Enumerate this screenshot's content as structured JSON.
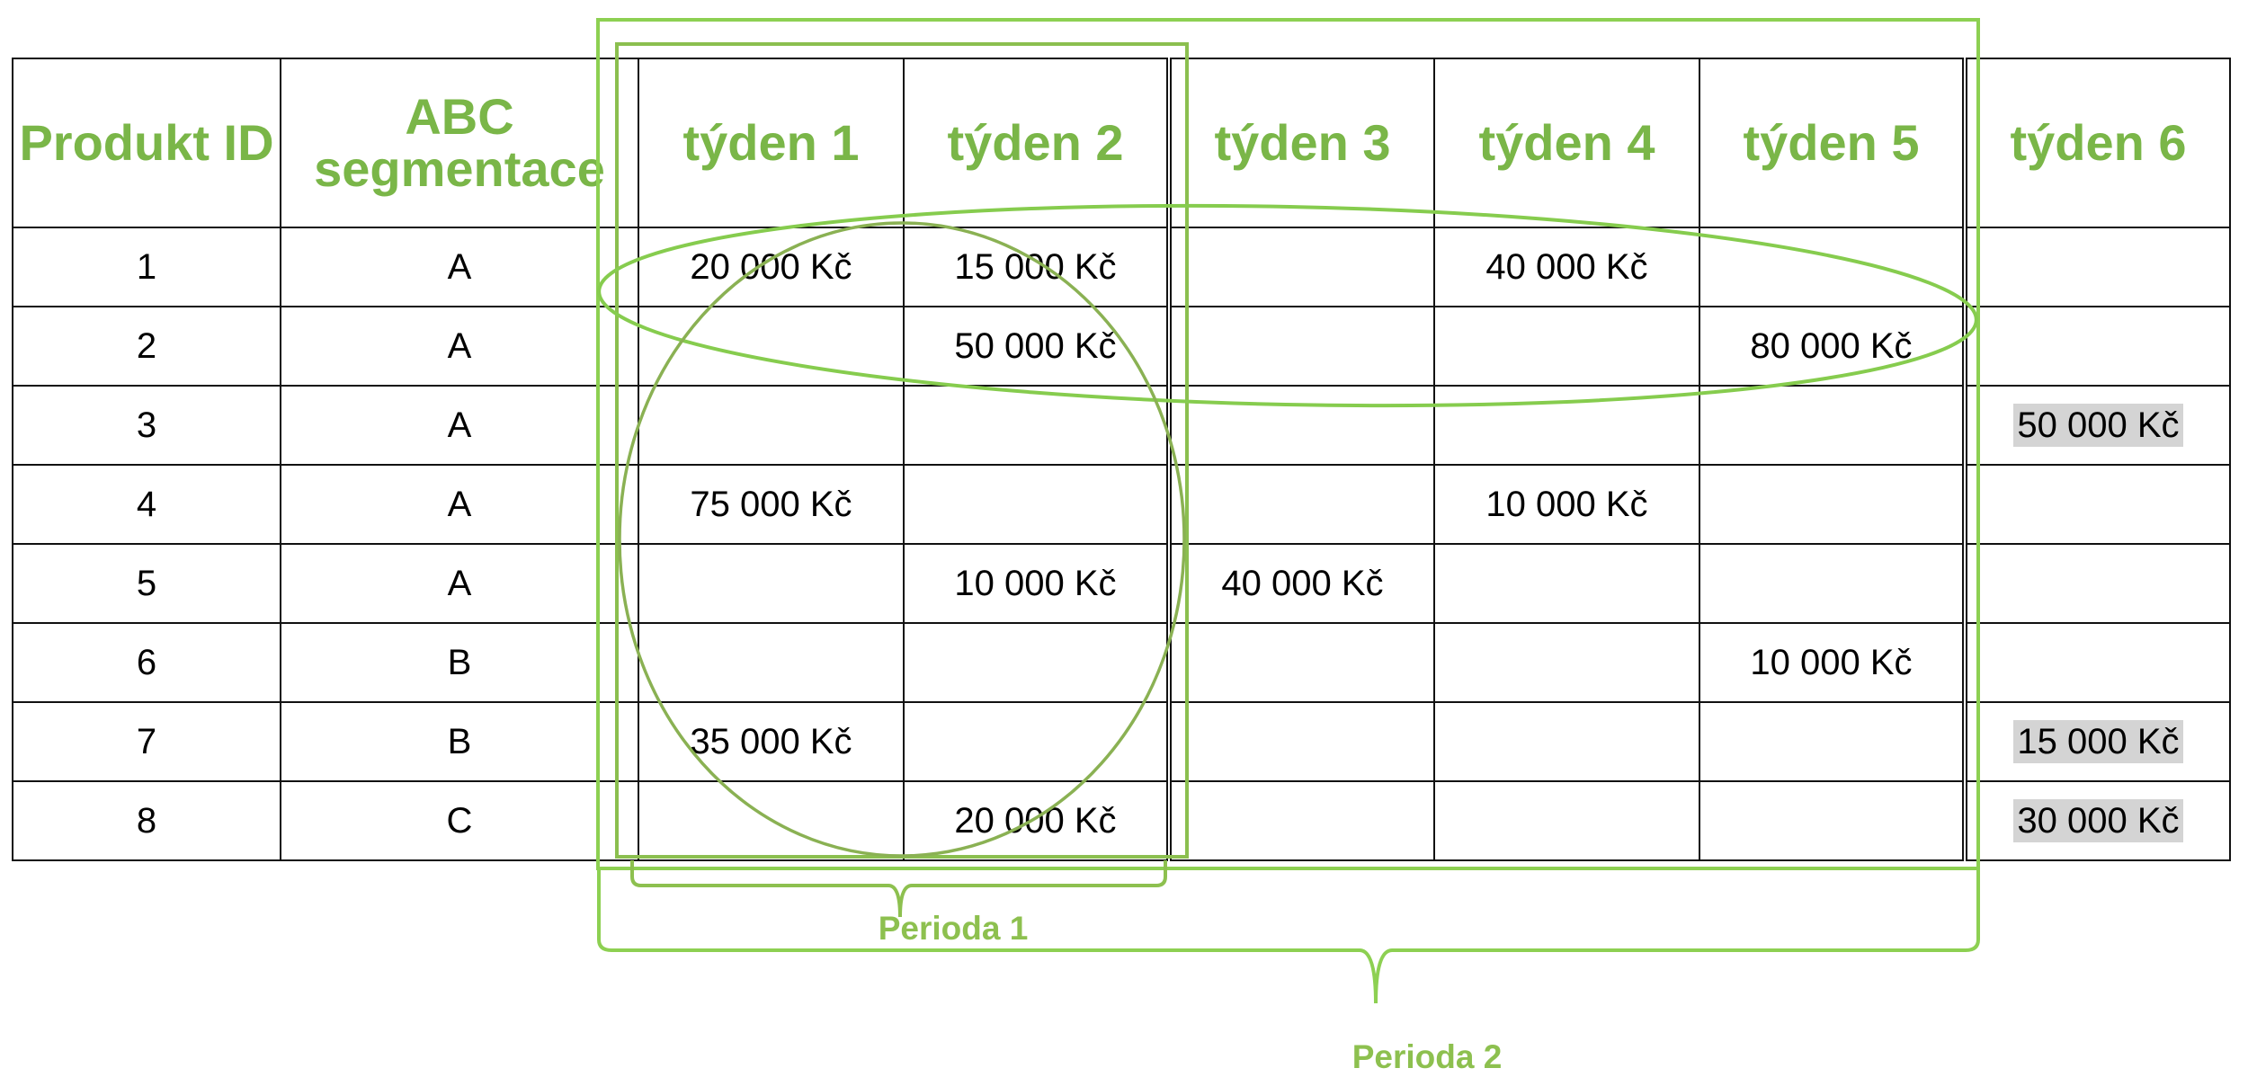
{
  "table": {
    "headers": [
      "Produkt ID",
      "ABC segmentace",
      "týden 1",
      "týden 2",
      "týden 3",
      "týden 4",
      "týden 5",
      "týden 6"
    ],
    "rows": [
      [
        "1",
        "A",
        "20 000 Kč",
        "15 000 Kč",
        "",
        "40 000 Kč",
        "",
        ""
      ],
      [
        "2",
        "A",
        "",
        "50 000 Kč",
        "",
        "",
        "80 000 Kč",
        ""
      ],
      [
        "3",
        "A",
        "",
        "",
        "",
        "",
        "",
        "50 000 Kč"
      ],
      [
        "4",
        "A",
        "75 000 Kč",
        "",
        "",
        "10 000 Kč",
        "",
        ""
      ],
      [
        "5",
        "A",
        "",
        "10 000 Kč",
        "40 000 Kč",
        "",
        "",
        ""
      ],
      [
        "6",
        "B",
        "",
        "",
        "",
        "",
        "10 000 Kč",
        ""
      ],
      [
        "7",
        "B",
        "35 000 Kč",
        "",
        "",
        "",
        "",
        "15 000 Kč"
      ],
      [
        "8",
        "C",
        "",
        "20 000 Kč",
        "",
        "",
        "",
        "30 000 Kč"
      ]
    ],
    "highlighted_column": "týden 6",
    "highlight_color": "#d4d4d4"
  },
  "annotations": {
    "period1_label": "Perioda 1",
    "period2_label": "Perioda 2",
    "accent_color": "#7ab648"
  }
}
